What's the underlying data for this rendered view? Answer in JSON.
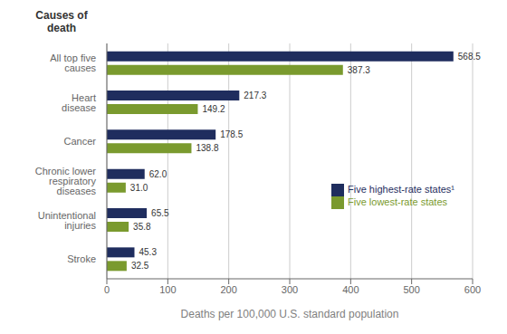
{
  "chart_data": {
    "type": "bar",
    "orientation": "horizontal",
    "ylabel": "Causes of\ndeath",
    "xlabel": "Deaths per 100,000 U.S. standard population",
    "categories": [
      "Stroke",
      "Unintentional\ninjuries",
      "Chronic lower\nrespiratory\ndiseases",
      "Cancer",
      "Heart\ndisease",
      "All top five\ncauses"
    ],
    "series": [
      {
        "name": "Five highest-rate states¹",
        "color": "#1f2d5e",
        "values": [
          45.3,
          65.5,
          62.0,
          178.5,
          217.3,
          568.5
        ],
        "value_labels": [
          "45.3",
          "65.5",
          "62.0",
          "178.5",
          "217.3",
          "568.5"
        ]
      },
      {
        "name": "Five lowest-rate states",
        "color": "#7a9a2e",
        "values": [
          32.5,
          35.8,
          31.0,
          138.8,
          149.2,
          387.3
        ],
        "value_labels": [
          "32.5",
          "35.8",
          "31.0",
          "138.8",
          "149.2",
          "387.3"
        ]
      }
    ],
    "xlim": [
      0,
      600
    ],
    "xticks": [
      0,
      100,
      200,
      300,
      400,
      500,
      600
    ],
    "grid": true,
    "data_labels": true,
    "legend": "right"
  }
}
